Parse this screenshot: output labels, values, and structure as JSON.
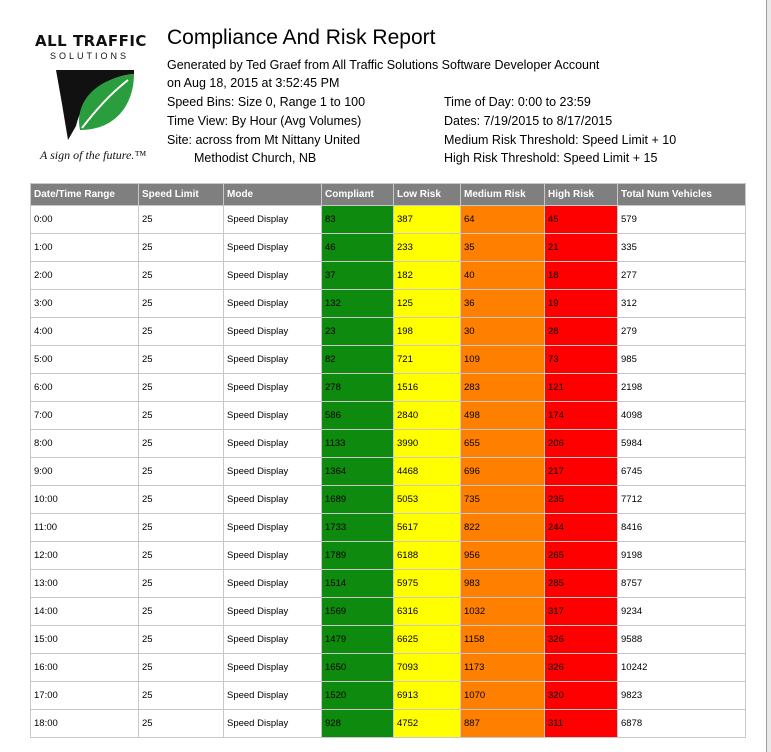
{
  "logo": {
    "title": "ALL TRAFFIC",
    "subtitle": "SOLUTIONS",
    "tagline": "A sign of the future.™",
    "colors": {
      "green": "#2a9d3e",
      "black": "#111111"
    }
  },
  "report": {
    "title": "Compliance And Risk Report",
    "generated_by": "Generated by Ted Graef from All Traffic Solutions Software Developer Account",
    "generated_on": "on Aug 18, 2015 at 3:52:45 PM",
    "speed_bins": "Speed Bins: Size 0, Range 1 to 100",
    "time_view": "Time View: By Hour (Avg Volumes)",
    "site_line1": "Site: across from Mt Nittany United",
    "site_line2": "Methodist Church, NB",
    "time_of_day": "Time of Day: 0:00 to 23:59",
    "dates": "Dates: 7/19/2015 to 8/17/2015",
    "medium_threshold": "Medium Risk Threshold: Speed Limit + 10",
    "high_threshold": "High Risk Threshold: Speed Limit + 15"
  },
  "table": {
    "headers": [
      "Date/Time Range",
      "Speed Limit",
      "Mode",
      "Compliant",
      "Low Risk",
      "Medium Risk",
      "High Risk",
      "Total Num Vehicles"
    ],
    "colors": {
      "header": "#7f7f7f",
      "compliant": "#0e8a0e",
      "low": "#ffff00",
      "medium": "#ff8000",
      "high": "#ff0000"
    },
    "rows": [
      [
        "0:00",
        "25",
        "Speed Display",
        "83",
        "387",
        "64",
        "45",
        "579"
      ],
      [
        "1:00",
        "25",
        "Speed Display",
        "46",
        "233",
        "35",
        "21",
        "335"
      ],
      [
        "2:00",
        "25",
        "Speed Display",
        "37",
        "182",
        "40",
        "18",
        "277"
      ],
      [
        "3:00",
        "25",
        "Speed Display",
        "132",
        "125",
        "36",
        "19",
        "312"
      ],
      [
        "4:00",
        "25",
        "Speed Display",
        "23",
        "198",
        "30",
        "28",
        "279"
      ],
      [
        "5:00",
        "25",
        "Speed Display",
        "82",
        "721",
        "109",
        "73",
        "985"
      ],
      [
        "6:00",
        "25",
        "Speed Display",
        "278",
        "1516",
        "283",
        "121",
        "2198"
      ],
      [
        "7:00",
        "25",
        "Speed Display",
        "586",
        "2840",
        "498",
        "174",
        "4098"
      ],
      [
        "8:00",
        "25",
        "Speed Display",
        "1133",
        "3990",
        "655",
        "206",
        "5984"
      ],
      [
        "9:00",
        "25",
        "Speed Display",
        "1364",
        "4468",
        "696",
        "217",
        "6745"
      ],
      [
        "10:00",
        "25",
        "Speed Display",
        "1689",
        "5053",
        "735",
        "235",
        "7712"
      ],
      [
        "11:00",
        "25",
        "Speed Display",
        "1733",
        "5617",
        "822",
        "244",
        "8416"
      ],
      [
        "12:00",
        "25",
        "Speed Display",
        "1789",
        "6188",
        "956",
        "265",
        "9198"
      ],
      [
        "13:00",
        "25",
        "Speed Display",
        "1514",
        "5975",
        "983",
        "285",
        "8757"
      ],
      [
        "14:00",
        "25",
        "Speed Display",
        "1569",
        "6316",
        "1032",
        "317",
        "9234"
      ],
      [
        "15:00",
        "25",
        "Speed Display",
        "1479",
        "6625",
        "1158",
        "326",
        "9588"
      ],
      [
        "16:00",
        "25",
        "Speed Display",
        "1650",
        "7093",
        "1173",
        "326",
        "10242"
      ],
      [
        "17:00",
        "25",
        "Speed Display",
        "1520",
        "6913",
        "1070",
        "320",
        "9823"
      ],
      [
        "18:00",
        "25",
        "Speed Display",
        "928",
        "4752",
        "887",
        "311",
        "6878"
      ]
    ]
  }
}
